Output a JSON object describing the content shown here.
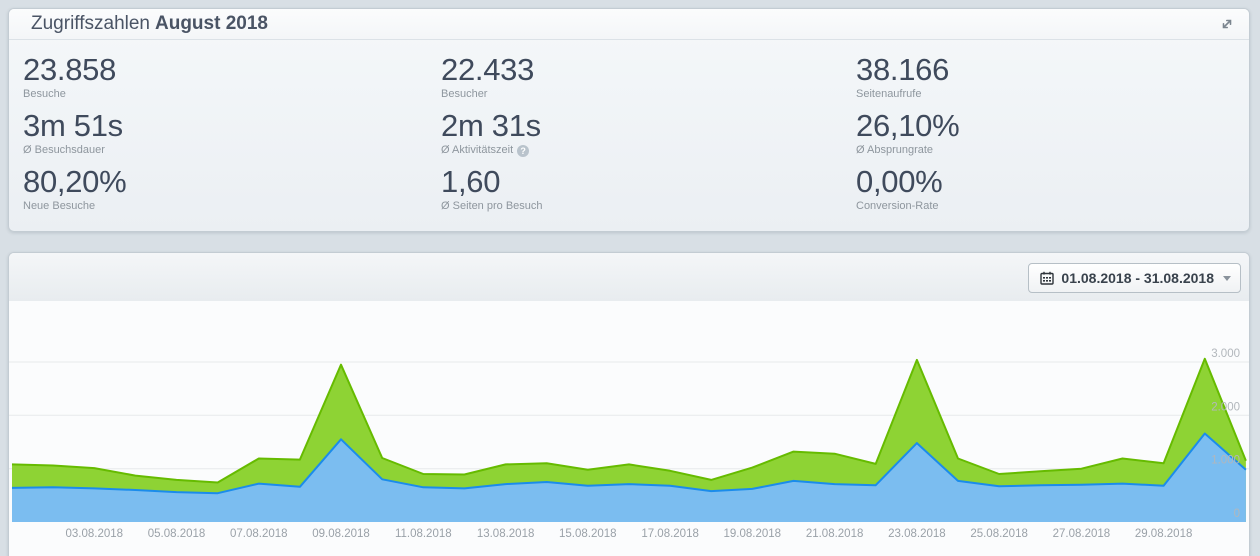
{
  "summary_panel": {
    "title_normal": "Zugriffszahlen",
    "title_bold": "August 2018",
    "help_glyph": "?",
    "columns": [
      {
        "stats": [
          {
            "value": "23.858",
            "label": "Besuche"
          },
          {
            "value": "3m 51s",
            "label": "Ø Besuchsdauer"
          },
          {
            "value": "80,20%",
            "label": "Neue Besuche"
          }
        ]
      },
      {
        "stats": [
          {
            "value": "22.433",
            "label": "Besucher"
          },
          {
            "value": "2m 31s",
            "label": "Ø Aktivitätszeit"
          },
          {
            "value": "1,60",
            "label": "Ø Seiten pro Besuch"
          }
        ]
      },
      {
        "stats": [
          {
            "value": "38.166",
            "label": "Seitenaufrufe"
          },
          {
            "value": "26,10%",
            "label": "Ø Absprungrate"
          },
          {
            "value": "0,00%",
            "label": "Conversion-Rate"
          }
        ]
      }
    ]
  },
  "chart_panel": {
    "date_range": "01.08.2018 - 31.08.2018"
  },
  "chart_data": {
    "type": "area",
    "title": "",
    "xlabel": "",
    "ylabel": "",
    "ylim": [
      0,
      3000
    ],
    "grid": true,
    "legend": "none",
    "y_ticks": [
      0,
      1000,
      2000,
      3000
    ],
    "y_tick_labels": [
      "0",
      "1.000",
      "2.000",
      "3.000"
    ],
    "x": [
      "01.08.2018",
      "02.08.2018",
      "03.08.2018",
      "04.08.2018",
      "05.08.2018",
      "06.08.2018",
      "07.08.2018",
      "08.08.2018",
      "09.08.2018",
      "10.08.2018",
      "11.08.2018",
      "12.08.2018",
      "13.08.2018",
      "14.08.2018",
      "15.08.2018",
      "16.08.2018",
      "17.08.2018",
      "18.08.2018",
      "19.08.2018",
      "20.08.2018",
      "21.08.2018",
      "22.08.2018",
      "23.08.2018",
      "24.08.2018",
      "25.08.2018",
      "26.08.2018",
      "27.08.2018",
      "28.08.2018",
      "29.08.2018",
      "30.08.2018",
      "31.08.2018"
    ],
    "x_tick_indices": [
      2,
      4,
      6,
      8,
      10,
      12,
      14,
      16,
      18,
      20,
      22,
      24,
      26,
      28
    ],
    "x_tick_labels": [
      "03.08.2018",
      "05.08.2018",
      "07.08.2018",
      "09.08.2018",
      "11.08.2018",
      "13.08.2018",
      "15.08.2018",
      "17.08.2018",
      "19.08.2018",
      "21.08.2018",
      "23.08.2018",
      "25.08.2018",
      "27.08.2018",
      "29.08.2018"
    ],
    "series": [
      {
        "name": "Seitenaufrufe",
        "fill": "#8ed334",
        "stroke": "#66bb00",
        "values": [
          1080,
          1060,
          1010,
          870,
          790,
          740,
          1190,
          1170,
          2950,
          1200,
          900,
          890,
          1080,
          1100,
          980,
          1080,
          960,
          790,
          1020,
          1320,
          1280,
          1090,
          3040,
          1190,
          900,
          950,
          1000,
          1190,
          1100,
          3060,
          1150
        ]
      },
      {
        "name": "Besuche",
        "fill": "#7bbdf0",
        "stroke": "#1b8ceb",
        "values": [
          640,
          650,
          630,
          600,
          560,
          540,
          720,
          660,
          1550,
          800,
          650,
          630,
          710,
          750,
          680,
          710,
          680,
          580,
          620,
          770,
          710,
          690,
          1480,
          770,
          670,
          690,
          700,
          720,
          680,
          1660,
          980
        ]
      }
    ],
    "colors": {
      "grid": "#e7eaec",
      "y_label": "#b2b7bc",
      "x_label": "#9aa1a8",
      "plot_bg": "#fbfcfd"
    }
  }
}
